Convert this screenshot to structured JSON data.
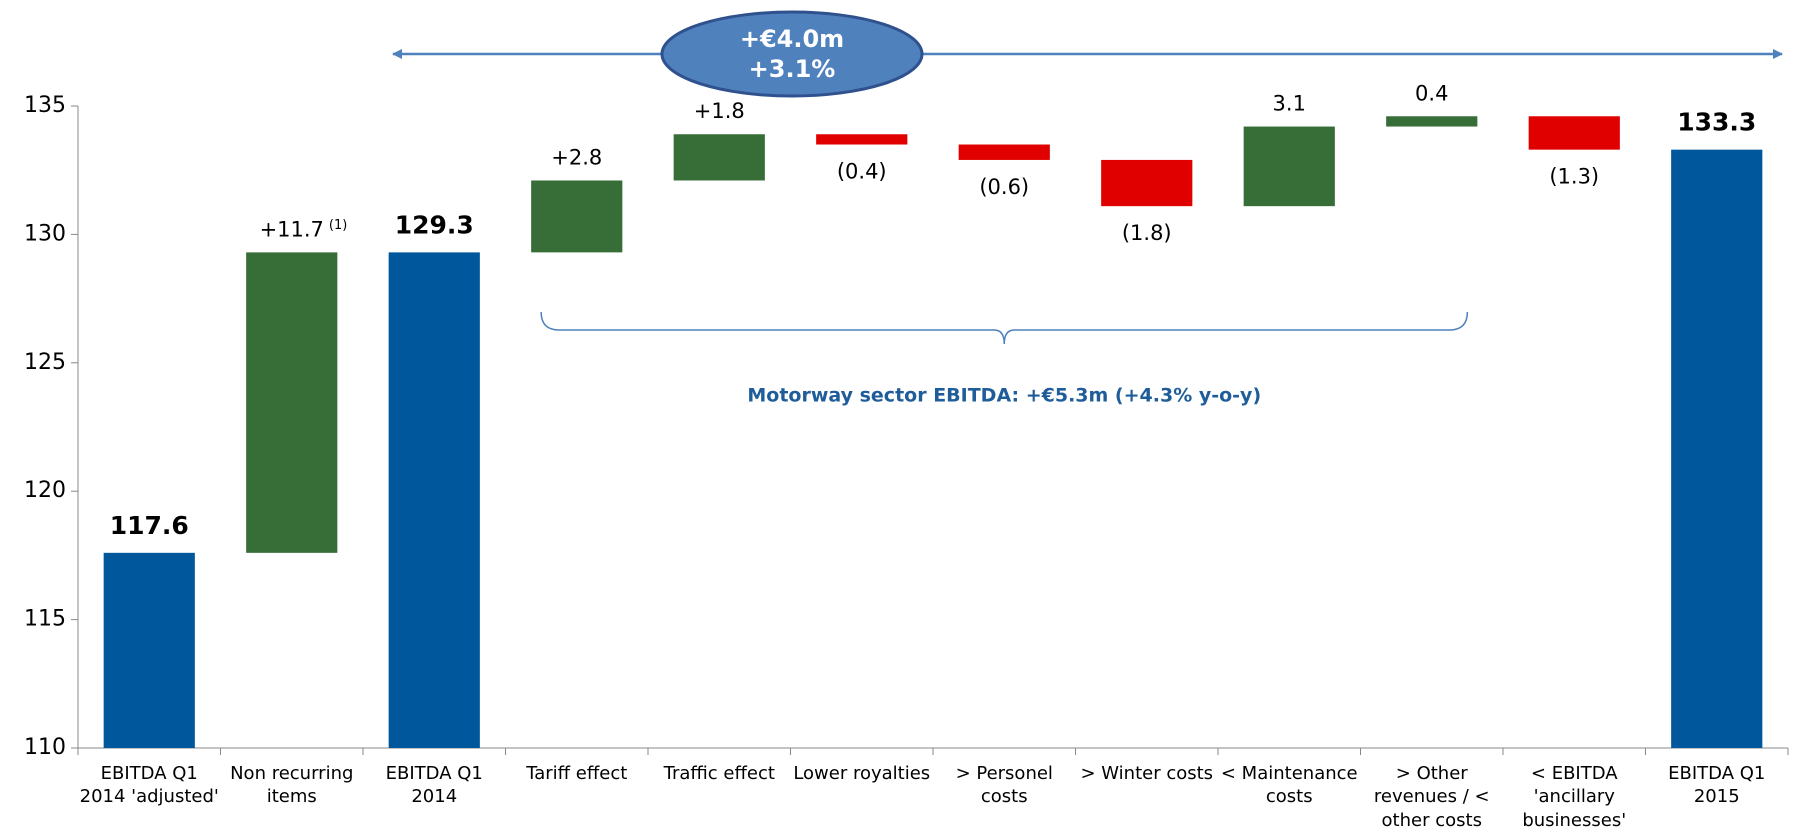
{
  "chart_data": {
    "type": "waterfall",
    "categories": [
      "EBITDA Q1 2014 'adjusted'",
      "Non recurring items",
      "EBITDA Q1 2014",
      "Tariff effect",
      "Traffic effect",
      "Lower royalties",
      "> Personel costs",
      "> Winter costs",
      "< Maintenance costs",
      "> Other revenues / < other costs",
      "< EBITDA 'ancillary businesses'",
      "EBITDA Q1 2015"
    ],
    "values": [
      117.6,
      11.7,
      129.3,
      2.8,
      1.8,
      -0.4,
      -0.6,
      -1.8,
      3.1,
      0.4,
      -1.3,
      133.3
    ],
    "value_labels": [
      "117.6",
      "+11.7",
      "129.3",
      "+2.8",
      "+1.8",
      "(0.4)",
      "(0.6)",
      "(1.8)",
      "3.1",
      "0.4",
      "(1.3)",
      "133.3"
    ],
    "measures": [
      "total",
      "relative",
      "total",
      "relative",
      "relative",
      "relative",
      "relative",
      "relative",
      "relative",
      "relative",
      "relative",
      "total"
    ],
    "colors": {
      "total": "#00579b",
      "increase": "#376d37",
      "decrease": "#e00000"
    },
    "ylim": [
      110,
      135
    ],
    "yticks": [
      110,
      115,
      120,
      125,
      130,
      135
    ],
    "grid": false,
    "footnote_mark": "(1)",
    "bracket_label": "Motorway sector EBITDA: +€5.3m (+4.3% y-o-y)",
    "bubble_lines": [
      "+€4.0m",
      "+3.1%"
    ]
  }
}
